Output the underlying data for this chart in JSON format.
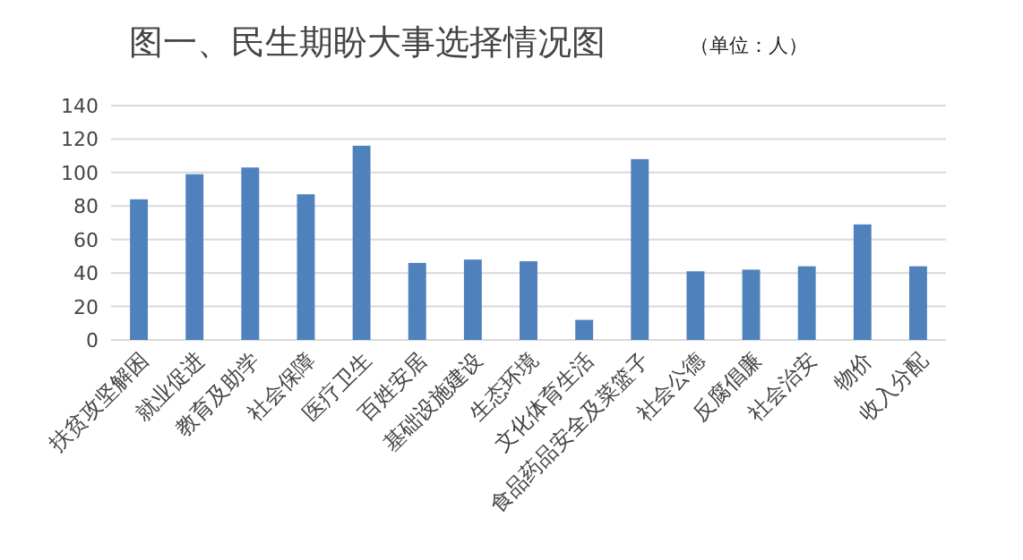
{
  "chart_data": {
    "type": "bar",
    "title": "图一、民生期盼大事选择情况图",
    "subtitle": "（单位：人）",
    "categories": [
      "扶贫攻坚解困",
      "就业促进",
      "教育及助学",
      "社会保障",
      "医疗卫生",
      "百姓安居",
      "基础设施建设",
      "生态环境",
      "文化体育生活",
      "食品药品安全及菜篮子",
      "社会公德",
      "反腐倡廉",
      "社会治安",
      "物价",
      "收入分配"
    ],
    "values": [
      84,
      99,
      103,
      87,
      116,
      46,
      48,
      47,
      12,
      108,
      41,
      42,
      44,
      69,
      44
    ],
    "color": "#4f81bd",
    "ylim": [
      0,
      140
    ],
    "yticks": [
      0,
      20,
      40,
      60,
      80,
      100,
      120,
      140
    ],
    "grid": "y"
  }
}
